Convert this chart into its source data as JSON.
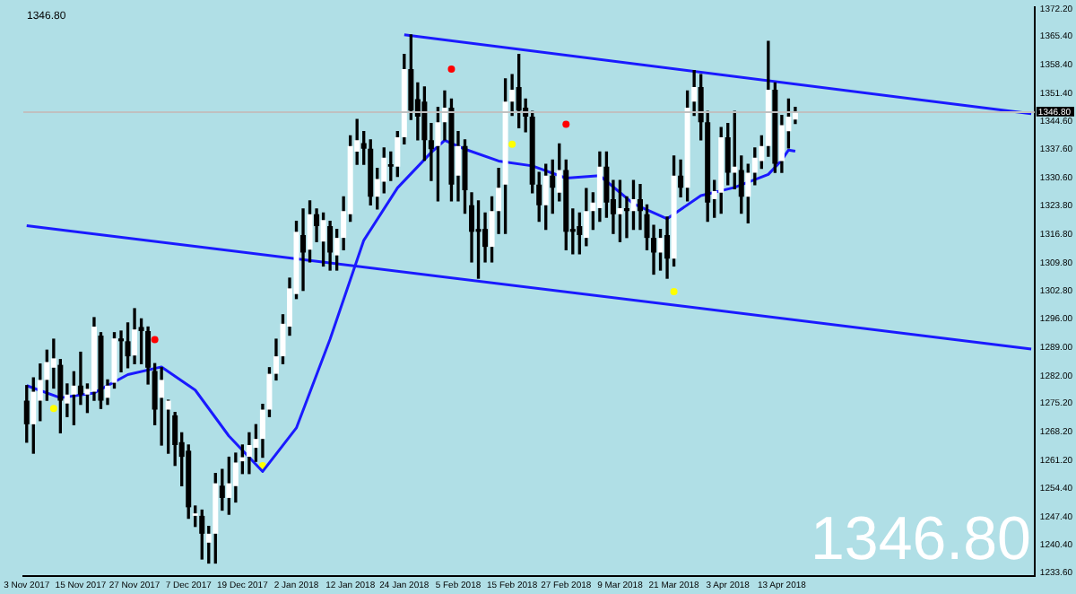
{
  "chart_data": {
    "type": "candlestick",
    "title": "1346.80",
    "color": "#000000",
    "colors": [
      "#000000",
      "#ffffff",
      "#ffffff",
      "#ffffff",
      "#ffffff",
      "#000000",
      "#ffffff",
      "#ffffff",
      "#000000",
      "#ffffff",
      "#ffffff",
      "#000000",
      "#ffffff",
      "#ffffff",
      "#000000",
      "#000000",
      "#ffffff",
      "#000000",
      "#000000",
      "#000000",
      "#ffffff",
      "#ffffff",
      "#000000",
      "#000000",
      "#000000",
      "#ffffff",
      "#000000",
      "#ffffff",
      "#ffffff",
      "#000000",
      "#ffffff",
      "#ffffff",
      "#ffffff",
      "#ffffff",
      "#ffffff",
      "#ffffff",
      "#ffffff",
      "#ffffff",
      "#ffffff",
      "#ffffff",
      "#ffffff",
      "#000000",
      "#ffffff",
      "#000000",
      "#ffffff",
      "#000000",
      "#ffffff",
      "#ffffff",
      "#ffffff",
      "#ffffff",
      "#000000",
      "#000000",
      "#ffffff",
      "#ffffff",
      "#000000",
      "#ffffff",
      "#ffffff",
      "#000000",
      "#000000",
      "#000000",
      "#000000",
      "#ffffff",
      "#ffffff",
      "#000000",
      "#ffffff",
      "#000000",
      "#000000",
      "#000000",
      "#000000",
      "#ffffff",
      "#ffffff",
      "#ffffff",
      "#ffffff",
      "#000000",
      "#000000",
      "#000000",
      "#000000",
      "#ffffff",
      "#000000",
      "#ffffff",
      "#000000",
      "#000000",
      "#000000",
      "#ffffff",
      "#ffffff",
      "#ffffff",
      "#000000",
      "#000000",
      "#ffffff",
      "#000000",
      "#ffffff",
      "#000000",
      "#000000",
      "#000000",
      "#ffffff",
      "#000000",
      "#ffffff",
      "#000000",
      "#ffffff",
      "#ffffff",
      "#000000",
      "#000000",
      "#ffffff",
      "#ffffff",
      "#000000",
      "#ffffff",
      "#000000",
      "#ffffff",
      "#ffffff",
      "#ffffff",
      "#ffffff",
      "#000000",
      "#ffffff",
      "#ffffff",
      "#ffffff",
      null,
      null,
      null,
      null,
      null,
      null,
      null,
      null,
      null,
      null,
      null,
      null,
      null,
      null,
      null,
      null,
      null,
      null,
      null,
      null,
      null,
      null,
      null,
      null,
      null,
      null,
      null,
      null,
      null,
      null,
      null,
      null,
      null,
      null,
      null
    ],
    "categories": [
      "3 Nov 2017",
      null,
      null,
      null,
      null,
      null,
      null,
      null,
      "15 Nov 2017",
      null,
      null,
      null,
      null,
      null,
      null,
      null,
      "27 Nov 2017",
      null,
      null,
      null,
      null,
      null,
      null,
      null,
      "7 Dec 2017",
      null,
      null,
      null,
      null,
      null,
      null,
      null,
      "19 Dec 2017",
      null,
      null,
      null,
      null,
      null,
      null,
      null,
      "2 Jan 2018",
      null,
      null,
      null,
      null,
      null,
      null,
      null,
      "12 Jan 2018",
      null,
      null,
      null,
      null,
      null,
      null,
      null,
      "24 Jan 2018",
      null,
      null,
      null,
      null,
      null,
      null,
      null,
      "5 Feb 2018",
      null,
      null,
      null,
      null,
      null,
      null,
      null,
      "15 Feb 2018",
      null,
      null,
      null,
      null,
      null,
      null,
      null,
      "27 Feb 2018",
      null,
      null,
      null,
      null,
      null,
      null,
      null,
      "9 Mar 2018",
      null,
      null,
      null,
      null,
      null,
      null,
      null,
      "21 Mar 2018",
      null,
      null,
      null,
      null,
      null,
      null,
      null,
      "3 Apr 2018",
      null,
      null,
      null,
      null,
      null,
      null,
      null,
      "13 Apr 2018",
      null,
      null,
      null,
      null,
      null,
      null,
      null,
      null,
      null,
      null,
      null,
      null,
      null,
      null,
      null,
      null,
      null,
      null,
      null,
      null,
      null,
      null,
      null,
      null,
      null,
      null,
      null,
      null,
      null,
      null,
      null,
      null,
      null,
      null,
      null,
      null,
      null
    ],
    "ohlc": [
      [
        1275.9,
        1279.6,
        1265.7,
        1270.1
      ],
      [
        1270.1,
        1281.5,
        1263.0,
        1278.1
      ],
      [
        1275.9,
        1284.9,
        1271.0,
        1281.0
      ],
      [
        1281.0,
        1288.3,
        1276.0,
        1285.4
      ],
      [
        1284.0,
        1291.0,
        1279.0,
        1286.3
      ],
      [
        1284.7,
        1286.0,
        1268.0,
        1275.9
      ],
      [
        1275.2,
        1280.0,
        1272.0,
        1277.4
      ],
      [
        1277.4,
        1283.0,
        1270.0,
        1279.6
      ],
      [
        1279.6,
        1287.8,
        1275.0,
        1277.4
      ],
      [
        1277.4,
        1280.0,
        1273.0,
        1278.8
      ],
      [
        1278.1,
        1296.3,
        1276.0,
        1294.1
      ],
      [
        1291.9,
        1292.6,
        1274.0,
        1275.9
      ],
      [
        1276.6,
        1281.0,
        1275.0,
        1279.6
      ],
      [
        1280.3,
        1292.6,
        1279.0,
        1291.2
      ],
      [
        1291.2,
        1293.0,
        1283.0,
        1290.5
      ],
      [
        1290.5,
        1295.0,
        1284.0,
        1286.8
      ],
      [
        1287.0,
        1298.5,
        1285.0,
        1293.4
      ],
      [
        1294.0,
        1296.0,
        1285.0,
        1293.0
      ],
      [
        1293.0,
        1294.0,
        1280.0,
        1284.0
      ],
      [
        1283.2,
        1285.0,
        1270.0,
        1273.7
      ],
      [
        1276.6,
        1284.0,
        1265.0,
        1281.0
      ],
      [
        1273.7,
        1276.0,
        1263.0,
        1275.9
      ],
      [
        1272.3,
        1273.0,
        1260.0,
        1265.0
      ],
      [
        1265.7,
        1268.0,
        1255.0,
        1262.1
      ],
      [
        1263.6,
        1265.0,
        1247.0,
        1249.7
      ],
      [
        1247.6,
        1250.0,
        1245.0,
        1248.2
      ],
      [
        1247.6,
        1249.0,
        1237.0,
        1243.2
      ],
      [
        1241.0,
        1245.0,
        1236.0,
        1243.2
      ],
      [
        1243.2,
        1258.0,
        1236.0,
        1255.6
      ],
      [
        1255.0,
        1259.0,
        1249.0,
        1252.0
      ],
      [
        1252.0,
        1262.0,
        1248.0,
        1255.6
      ],
      [
        1254.9,
        1263.0,
        1251.0,
        1260.7
      ],
      [
        1261.0,
        1265.0,
        1258.0,
        1262.0
      ],
      [
        1262.1,
        1268.0,
        1258.0,
        1265.0
      ],
      [
        1264.3,
        1270.0,
        1261.0,
        1266.5
      ],
      [
        1266.5,
        1275.0,
        1262.0,
        1273.7
      ],
      [
        1273.7,
        1284.0,
        1272.0,
        1282.5
      ],
      [
        1282.5,
        1291.0,
        1281.0,
        1286.8
      ],
      [
        1286.8,
        1297.0,
        1285.0,
        1294.8
      ],
      [
        1294.1,
        1306.0,
        1292.0,
        1303.5
      ],
      [
        1302.1,
        1320.0,
        1301.0,
        1317.4
      ],
      [
        1316.6,
        1323.0,
        1303.0,
        1312.3
      ],
      [
        1313.0,
        1325.0,
        1310.0,
        1321.7
      ],
      [
        1321.7,
        1323.0,
        1315.0,
        1318.8
      ],
      [
        1315.0,
        1322.0,
        1309.0,
        1320.3
      ],
      [
        1318.8,
        1320.0,
        1308.0,
        1312.3
      ],
      [
        1311.6,
        1318.0,
        1308.0,
        1315.9
      ],
      [
        1315.9,
        1326.0,
        1313.0,
        1322.5
      ],
      [
        1321.7,
        1341.0,
        1320.0,
        1338.5
      ],
      [
        1337.1,
        1345.0,
        1334.0,
        1339.9
      ],
      [
        1339.2,
        1342.0,
        1334.0,
        1337.8
      ],
      [
        1337.8,
        1340.0,
        1324.0,
        1326.0
      ],
      [
        1326.0,
        1333.0,
        1323.0,
        1330.4
      ],
      [
        1329.7,
        1338.0,
        1327.0,
        1335.6
      ],
      [
        1334.0,
        1337.0,
        1330.0,
        1333.4
      ],
      [
        1333.4,
        1342.0,
        1331.0,
        1340.6
      ],
      [
        1340.6,
        1361.0,
        1339.0,
        1357.4
      ],
      [
        1357.4,
        1365.8,
        1345.0,
        1347.2
      ],
      [
        1350.0,
        1354.0,
        1340.0,
        1345.7
      ],
      [
        1349.4,
        1353.0,
        1335.0,
        1339.9
      ],
      [
        1339.9,
        1344.0,
        1330.0,
        1337.7
      ],
      [
        1338.5,
        1348.0,
        1325.0,
        1344.3
      ],
      [
        1344.3,
        1352.0,
        1340.0,
        1347.9
      ],
      [
        1347.9,
        1350.0,
        1325.0,
        1329.0
      ],
      [
        1331.2,
        1342.0,
        1325.0,
        1338.5
      ],
      [
        1338.5,
        1340.0,
        1322.0,
        1327.6
      ],
      [
        1323.9,
        1327.0,
        1310.0,
        1317.4
      ],
      [
        1318.1,
        1325.0,
        1306.0,
        1317.4
      ],
      [
        1318.1,
        1322.0,
        1310.0,
        1313.7
      ],
      [
        1313.7,
        1326.0,
        1310.0,
        1322.5
      ],
      [
        1322.5,
        1333.0,
        1317.0,
        1328.2
      ],
      [
        1329.0,
        1355.0,
        1317.0,
        1349.4
      ],
      [
        1349.4,
        1356.0,
        1346.0,
        1352.3
      ],
      [
        1353.0,
        1361.0,
        1343.0,
        1347.2
      ],
      [
        1347.9,
        1350.0,
        1342.0,
        1345.7
      ],
      [
        1345.7,
        1347.0,
        1327.0,
        1329.0
      ],
      [
        1329.0,
        1332.0,
        1320.0,
        1323.9
      ],
      [
        1323.9,
        1334.0,
        1318.0,
        1331.2
      ],
      [
        1331.2,
        1335.0,
        1322.0,
        1328.2
      ],
      [
        1327.0,
        1339.0,
        1325.0,
        1332.6
      ],
      [
        1332.6,
        1335.0,
        1313.0,
        1317.4
      ],
      [
        1318.1,
        1323.0,
        1312.0,
        1317.4
      ],
      [
        1318.8,
        1322.0,
        1312.0,
        1316.6
      ],
      [
        1315.9,
        1328.0,
        1314.0,
        1322.5
      ],
      [
        1322.5,
        1327.0,
        1318.0,
        1324.6
      ],
      [
        1323.2,
        1337.0,
        1320.0,
        1333.4
      ],
      [
        1333.4,
        1337.0,
        1321.0,
        1324.6
      ],
      [
        1325.4,
        1330.0,
        1317.0,
        1321.7
      ],
      [
        1321.7,
        1330.0,
        1315.0,
        1323.2
      ],
      [
        1323.2,
        1326.0,
        1316.0,
        1322.5
      ],
      [
        1322.5,
        1330.0,
        1318.0,
        1325.4
      ],
      [
        1325.4,
        1329.0,
        1318.0,
        1322.5
      ],
      [
        1321.7,
        1324.0,
        1313.0,
        1315.9
      ],
      [
        1315.9,
        1319.0,
        1307.0,
        1312.3
      ],
      [
        1312.3,
        1318.0,
        1308.0,
        1315.9
      ],
      [
        1316.6,
        1321.0,
        1306.0,
        1310.8
      ],
      [
        1310.8,
        1336.0,
        1309.0,
        1331.2
      ],
      [
        1331.2,
        1335.0,
        1326.0,
        1328.2
      ],
      [
        1328.2,
        1352.0,
        1325.0,
        1347.9
      ],
      [
        1349.4,
        1357.0,
        1346.0,
        1353.0
      ],
      [
        1353.0,
        1356.0,
        1340.0,
        1344.3
      ],
      [
        1344.3,
        1347.0,
        1320.0,
        1324.6
      ],
      [
        1325.4,
        1330.0,
        1321.0,
        1327.4
      ],
      [
        1327.0,
        1343.0,
        1322.0,
        1340.6
      ],
      [
        1340.6,
        1344.0,
        1329.0,
        1331.9
      ],
      [
        1331.9,
        1347.0,
        1328.0,
        1333.4
      ],
      [
        1332.6,
        1336.0,
        1322.0,
        1326.0
      ],
      [
        1326.0,
        1334.0,
        1319.6,
        1331.9
      ],
      [
        1331.9,
        1338.0,
        1329.0,
        1335.6
      ],
      [
        1334.8,
        1341.0,
        1333.0,
        1338.5
      ],
      [
        1338.5,
        1364.2,
        1336.0,
        1352.3
      ],
      [
        1352.3,
        1354.0,
        1332.0,
        1334.1
      ],
      [
        1334.8,
        1346.0,
        1332.0,
        1343.6
      ],
      [
        1342.1,
        1350.0,
        1338.0,
        1345.7
      ],
      [
        1345.0,
        1348.0,
        1344.0,
        1346.8
      ],
      null,
      null,
      null,
      null,
      null,
      null,
      null,
      null,
      null,
      null,
      null,
      null,
      null,
      null,
      null,
      null,
      null,
      null,
      null,
      null,
      null,
      null,
      null,
      null,
      null,
      null,
      null,
      null,
      null,
      null,
      null,
      null,
      null,
      null,
      null
    ],
    "series": [
      {
        "type": "line",
        "color": "#1a1aff",
        "values": [
          1279.6,
          null,
          null,
          null,
          null,
          1276.6,
          null,
          null,
          null,
          null,
          1277.8,
          null,
          null,
          null,
          null,
          1282.3,
          null,
          null,
          null,
          null,
          1284.2,
          null,
          null,
          null,
          null,
          1278.5,
          null,
          null,
          null,
          null,
          1267.2,
          null,
          null,
          null,
          null,
          1258.5,
          null,
          null,
          null,
          null,
          1269.2,
          null,
          null,
          null,
          null,
          1291.0,
          null,
          null,
          null,
          null,
          1315.3,
          null,
          null,
          null,
          null,
          1328.2,
          null,
          null,
          null,
          null,
          1336.9,
          null,
          1339.9,
          null,
          null,
          1337.7,
          null,
          null,
          null,
          null,
          1334.8,
          null,
          null,
          null,
          null,
          1333.6,
          null,
          null,
          null,
          null,
          1330.6,
          null,
          null,
          null,
          null,
          1331.2,
          null,
          null,
          null,
          null,
          1324.3,
          null,
          null,
          null,
          null,
          1320.6,
          null,
          null,
          null,
          null,
          1326.3,
          null,
          null,
          null,
          null,
          1328.3,
          null,
          null,
          null,
          null,
          1331.5,
          null,
          1335.0,
          1337.5,
          1337.2,
          null,
          null,
          null,
          null,
          null,
          null,
          null,
          null,
          null,
          null,
          null,
          null,
          null,
          null,
          null,
          null,
          null,
          null,
          null,
          null,
          null,
          null,
          null,
          null,
          null,
          null,
          null,
          null,
          null,
          null,
          null,
          null,
          null,
          null,
          null
        ]
      },
      {
        "type": "line",
        "color": "#1a1aff",
        "values": [
          null,
          null,
          null,
          null,
          null,
          null,
          null,
          null,
          null,
          null,
          null,
          null,
          null,
          null,
          null,
          null,
          null,
          null,
          null,
          null,
          null,
          null,
          null,
          null,
          null,
          null,
          null,
          null,
          null,
          null,
          null,
          null,
          null,
          null,
          null,
          null,
          null,
          null,
          null,
          null,
          null,
          null,
          null,
          null,
          null,
          null,
          null,
          null,
          null,
          null,
          null,
          null,
          null,
          null,
          null,
          null,
          1365.8,
          null,
          null,
          null,
          null,
          null,
          null,
          null,
          null,
          null,
          null,
          null,
          null,
          null,
          null,
          null,
          null,
          null,
          null,
          null,
          null,
          null,
          null,
          null,
          null,
          null,
          null,
          null,
          null,
          null,
          null,
          null,
          null,
          null,
          null,
          null,
          null,
          null,
          null,
          null,
          null,
          null,
          null,
          null,
          null,
          null,
          null,
          null,
          null,
          null,
          null,
          null,
          null,
          null,
          null,
          null,
          null,
          null,
          null,
          null,
          null,
          null,
          null,
          null,
          null,
          null,
          null,
          null,
          null,
          null,
          null,
          null,
          null,
          null,
          null,
          null,
          null,
          null,
          null,
          null,
          null,
          null,
          null,
          null,
          null,
          null,
          null,
          null,
          null,
          null,
          null,
          null,
          null,
          1346.4
        ]
      },
      {
        "type": "line",
        "color": "#1a1aff",
        "values": [
          1318.9,
          null,
          null,
          null,
          null,
          null,
          null,
          null,
          null,
          null,
          null,
          null,
          null,
          null,
          null,
          null,
          null,
          null,
          null,
          null,
          null,
          null,
          null,
          null,
          null,
          null,
          null,
          null,
          null,
          null,
          null,
          null,
          null,
          null,
          null,
          null,
          null,
          null,
          null,
          null,
          null,
          null,
          null,
          null,
          null,
          null,
          null,
          null,
          null,
          null,
          null,
          null,
          null,
          null,
          null,
          null,
          null,
          null,
          null,
          null,
          null,
          null,
          null,
          null,
          null,
          null,
          null,
          null,
          null,
          null,
          null,
          null,
          null,
          null,
          null,
          null,
          null,
          null,
          null,
          null,
          null,
          null,
          null,
          null,
          null,
          null,
          null,
          null,
          null,
          null,
          null,
          null,
          null,
          null,
          null,
          null,
          null,
          null,
          null,
          null,
          null,
          null,
          null,
          null,
          null,
          null,
          null,
          null,
          null,
          null,
          null,
          null,
          null,
          null,
          null,
          null,
          null,
          null,
          null,
          null,
          null,
          null,
          null,
          null,
          null,
          null,
          null,
          null,
          null,
          null,
          null,
          null,
          null,
          null,
          null,
          null,
          null,
          null,
          null,
          null,
          null,
          null,
          null,
          null,
          null,
          null,
          null,
          null,
          null,
          1288.6
        ]
      },
      {
        "type": "scatter",
        "color": "#ff0000",
        "values": [
          null,
          null,
          null,
          null,
          null,
          null,
          null,
          null,
          null,
          null,
          null,
          null,
          null,
          null,
          null,
          null,
          null,
          null,
          null,
          1290.9,
          null,
          null,
          null,
          null,
          null,
          null,
          null,
          null,
          null,
          null,
          null,
          null,
          null,
          null,
          null,
          null,
          null,
          null,
          null,
          null,
          null,
          null,
          null,
          null,
          null,
          null,
          null,
          null,
          null,
          null,
          null,
          null,
          null,
          null,
          null,
          null,
          null,
          null,
          null,
          null,
          null,
          null,
          null,
          1357.4,
          null,
          null,
          null,
          null,
          null,
          null,
          null,
          null,
          null,
          null,
          null,
          null,
          null,
          null,
          null,
          null,
          1343.8,
          null,
          null,
          null,
          null,
          null,
          null,
          null,
          null,
          null,
          null,
          null,
          null,
          null,
          null,
          null,
          null,
          null,
          null,
          null,
          null,
          null,
          null,
          null,
          null,
          null,
          null,
          null,
          null,
          null,
          null,
          null,
          null,
          null,
          null,
          null,
          null,
          null,
          null,
          null,
          null,
          null,
          null,
          null,
          null,
          null,
          null,
          null,
          null,
          null,
          null,
          null,
          null,
          null,
          null,
          null,
          null,
          null,
          null,
          null,
          null,
          null,
          null,
          null,
          null,
          null,
          null,
          null,
          null,
          null
        ]
      },
      {
        "type": "scatter",
        "color": "#ffff00",
        "values": [
          null,
          null,
          null,
          null,
          1274.0,
          null,
          null,
          null,
          null,
          null,
          null,
          null,
          null,
          null,
          null,
          null,
          null,
          null,
          null,
          null,
          null,
          null,
          null,
          null,
          null,
          null,
          null,
          null,
          null,
          null,
          null,
          null,
          null,
          null,
          null,
          1259.9,
          null,
          null,
          null,
          null,
          null,
          null,
          null,
          null,
          null,
          null,
          null,
          null,
          null,
          null,
          null,
          null,
          null,
          null,
          null,
          null,
          null,
          null,
          null,
          null,
          null,
          null,
          null,
          null,
          null,
          null,
          null,
          null,
          null,
          null,
          null,
          null,
          1338.9,
          null,
          null,
          null,
          null,
          null,
          null,
          null,
          null,
          null,
          null,
          null,
          null,
          null,
          null,
          null,
          null,
          null,
          null,
          null,
          null,
          null,
          null,
          null,
          1302.7,
          null,
          null,
          null,
          null,
          null,
          null,
          null,
          null,
          null,
          null,
          null,
          null,
          null,
          null,
          null,
          null,
          null,
          null,
          null,
          null,
          null,
          null,
          null,
          null,
          null,
          null,
          null,
          null,
          null,
          null,
          null,
          null,
          null,
          null,
          null,
          null,
          null,
          null,
          null,
          null,
          null,
          null,
          null,
          null,
          null,
          null,
          null,
          null,
          null,
          null,
          null,
          null,
          null
        ]
      }
    ],
    "ylim": [
      1232.8,
      1372.6
    ],
    "yticks": [
      {
        "value": 1372.2,
        "label": "1372.20"
      },
      {
        "value": 1365.4,
        "label": "1365.40"
      },
      {
        "value": 1358.4,
        "label": "1358.40"
      },
      {
        "value": 1351.4,
        "label": "1351.40"
      },
      {
        "value": 1344.6,
        "label": "1344.60"
      },
      {
        "value": 1337.6,
        "label": "1337.60"
      },
      {
        "value": 1330.6,
        "label": "1330.60"
      },
      {
        "value": 1323.8,
        "label": "1323.80"
      },
      {
        "value": 1316.8,
        "label": "1316.80"
      },
      {
        "value": 1309.8,
        "label": "1309.80"
      },
      {
        "value": 1302.8,
        "label": "1302.80"
      },
      {
        "value": 1296,
        "label": "1296.00"
      },
      {
        "value": 1289,
        "label": "1289.00"
      },
      {
        "value": 1282,
        "label": "1282.00"
      },
      {
        "value": 1275.2,
        "label": "1275.20"
      },
      {
        "value": 1268.2,
        "label": "1268.20"
      },
      {
        "value": 1261.2,
        "label": "1261.20"
      },
      {
        "value": 1254.4,
        "label": "1254.40"
      },
      {
        "value": 1247.4,
        "label": "1247.40"
      },
      {
        "value": 1240.4,
        "label": "1240.40"
      },
      {
        "value": 1233.6,
        "label": "1233.60"
      }
    ],
    "ref_lines": [
      {
        "axis": "y",
        "value": 1346.8,
        "label": "1346.80",
        "color": "#c0c0c0"
      }
    ],
    "annotations": [
      "1346.80"
    ],
    "grid": false,
    "legend": false
  }
}
